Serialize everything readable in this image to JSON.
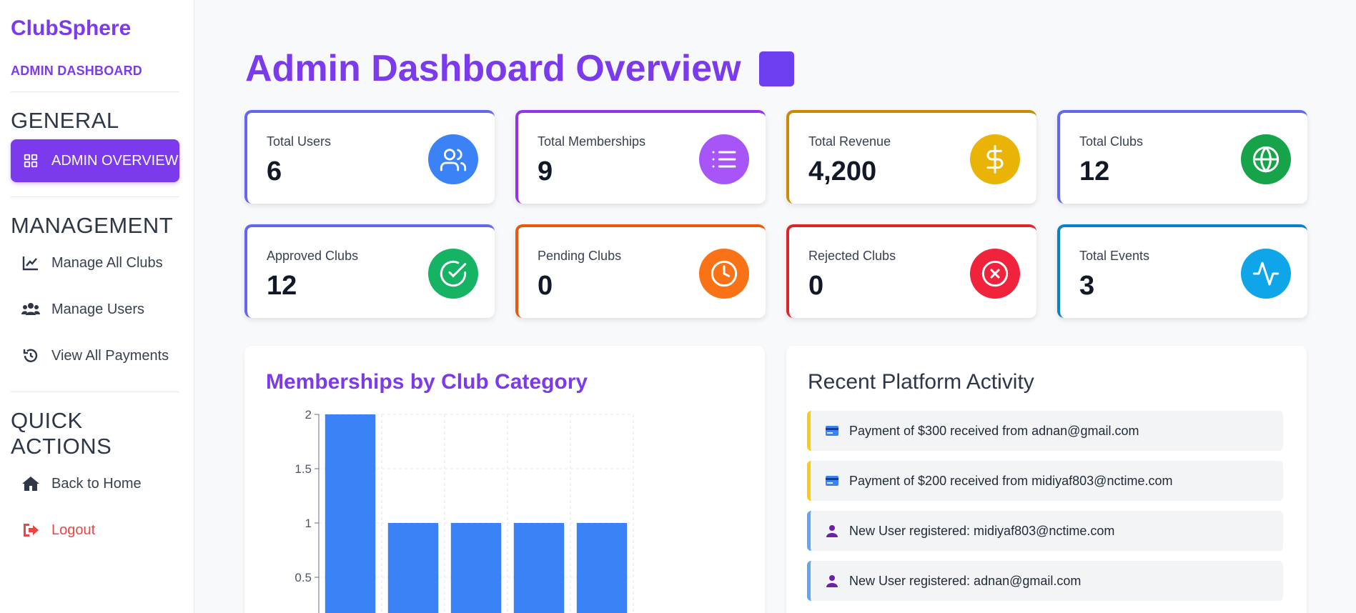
{
  "sidebar": {
    "brand": "ClubSphere",
    "subtitle": "ADMIN DASHBOARD",
    "general_title": "GENERAL",
    "admin_overview": "ADMIN OVERVIEW",
    "management_title": "MANAGEMENT",
    "manage_clubs": "Manage All Clubs",
    "manage_users": "Manage Users",
    "view_payments": "View All Payments",
    "quick_actions_title": "QUICK ACTIONS",
    "back_home": "Back to Home",
    "logout": "Logout"
  },
  "header": {
    "title": "Admin Dashboard Overview"
  },
  "stats": [
    {
      "label": "Total Users",
      "value": "6",
      "color": "#6366f1",
      "icon_color": "#3b82f6",
      "icon": "users-icon"
    },
    {
      "label": "Total Memberships",
      "value": "9",
      "color": "#9333ea",
      "icon_color": "#a855f7",
      "icon": "list-icon"
    },
    {
      "label": "Total Revenue",
      "value": "4,200",
      "color": "#ca8a04",
      "icon_color": "#eab308",
      "icon": "dollar-icon"
    },
    {
      "label": "Total Clubs",
      "value": "12",
      "color": "#6366f1",
      "icon_color": "#16a34a",
      "icon": "globe-icon"
    },
    {
      "label": "Approved Clubs",
      "value": "12",
      "color": "#6366f1",
      "icon_color": "#16b364",
      "icon": "check-circle-icon"
    },
    {
      "label": "Pending Clubs",
      "value": "0",
      "color": "#ea580c",
      "icon_color": "#f97316",
      "icon": "clock-icon"
    },
    {
      "label": "Rejected Clubs",
      "value": "0",
      "color": "#dc2626",
      "icon_color": "#ef233c",
      "icon": "x-circle-icon"
    },
    {
      "label": "Total Events",
      "value": "3",
      "color": "#0284c7",
      "icon_color": "#0ea5e9",
      "icon": "activity-icon"
    }
  ],
  "chart": {
    "title": "Memberships by Club Category"
  },
  "chart_data": {
    "type": "bar",
    "title": "Memberships by Club Category",
    "categories": [
      "",
      "",
      "",
      "",
      ""
    ],
    "values": [
      2,
      1,
      1,
      1,
      1
    ],
    "ylim": [
      0,
      2
    ],
    "yticks": [
      0.5,
      1,
      1.5,
      2
    ],
    "ytick_labels": [
      "0.5",
      "1",
      "1.5",
      "2"
    ],
    "grid": true,
    "bar_color": "#3b82f6"
  },
  "activity": {
    "title": "Recent Platform Activity",
    "items": [
      {
        "text": "Payment of $300 received from adnan@gmail.com",
        "icon": "credit-card-icon",
        "color": "#facc15"
      },
      {
        "text": "Payment of $200 received from midiyaf803@nctime.com",
        "icon": "credit-card-icon",
        "color": "#facc15"
      },
      {
        "text": "New User registered: midiyaf803@nctime.com",
        "icon": "user-icon",
        "color": "#60a5fa"
      },
      {
        "text": "New User registered: adnan@gmail.com",
        "icon": "user-icon",
        "color": "#60a5fa"
      }
    ]
  }
}
